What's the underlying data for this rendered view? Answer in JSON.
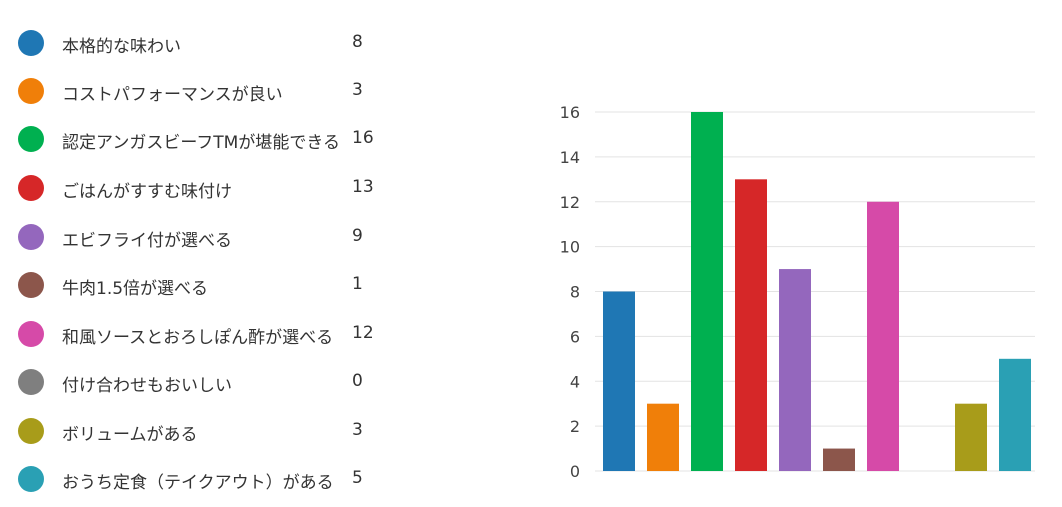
{
  "chart_data": {
    "type": "bar",
    "categories": [
      "本格的な味わい",
      "コストパフォーマンスが良い",
      "認定アンガスビーフTMが堪能できる",
      "ごはんがすすむ味付け",
      "エビフライ付が選べる",
      "牛肉1.5倍が選べる",
      "和風ソースとおろしぽん酢が選べる",
      "付け合わせもおいしい",
      "ボリュームがある",
      "おうち定食（テイクアウト）がある"
    ],
    "values": [
      8,
      3,
      16,
      13,
      9,
      1,
      12,
      0,
      3,
      5
    ],
    "colors": [
      "#1f77b4",
      "#f07f09",
      "#00b050",
      "#d62728",
      "#9467bd",
      "#8c564b",
      "#d64aa8",
      "#7f7f7f",
      "#a89c1a",
      "#2aa0b4"
    ],
    "ylim": [
      0,
      16
    ],
    "yticks": [
      "0",
      "2",
      "4",
      "6",
      "8",
      "10",
      "12",
      "14",
      "16"
    ],
    "grid": true
  }
}
